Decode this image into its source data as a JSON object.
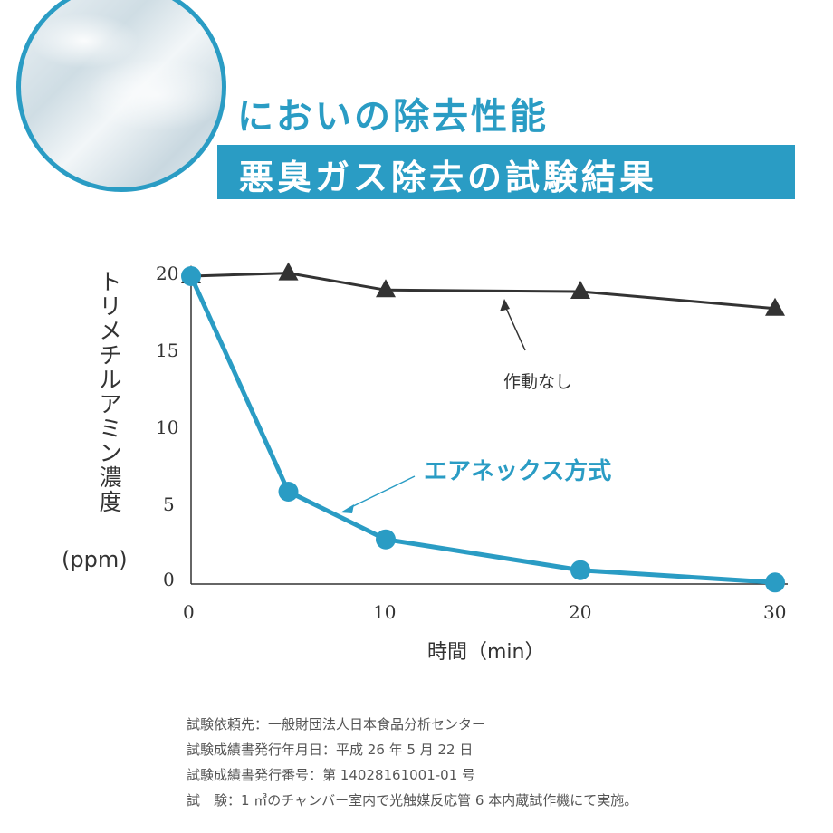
{
  "heading": {
    "title": "においの除去性能",
    "subtitle": "悪臭ガス除去の試験結果"
  },
  "colors": {
    "accent": "#2a9cc4",
    "series_none": "#333333",
    "series_airnex": "#2a9cc4"
  },
  "chart_data": {
    "type": "line",
    "title": "",
    "xlabel": "時間（min）",
    "ylabel": "トリメチルアミン濃度",
    "yunit": "(ppm)",
    "x_ticks": [
      "0",
      "10",
      "20",
      "30"
    ],
    "y_ticks": [
      "0",
      "5",
      "10",
      "15",
      "20"
    ],
    "xlim": [
      0,
      30
    ],
    "ylim": [
      0,
      20
    ],
    "grid": false,
    "series": [
      {
        "name": "作動なし",
        "marker": "triangle",
        "x": [
          0,
          5,
          10,
          20,
          30
        ],
        "y": [
          20,
          20.2,
          19.1,
          19.0,
          17.9
        ]
      },
      {
        "name": "エアネックス方式",
        "marker": "circle",
        "x": [
          0,
          5,
          10,
          20,
          30
        ],
        "y": [
          20,
          6,
          2.9,
          0.9,
          0.1
        ]
      }
    ]
  },
  "notes": [
    "試験依頼先：一般財団法人日本食品分析センター",
    "試験成績書発行年月日：平成 26 年 5 月 22 日",
    "試験成績書発行番号：第 14028161001-01 号",
    "試　験：1 ㎥のチャンバー室内で光触媒反応管 6 本内蔵試作機にて実施。"
  ]
}
